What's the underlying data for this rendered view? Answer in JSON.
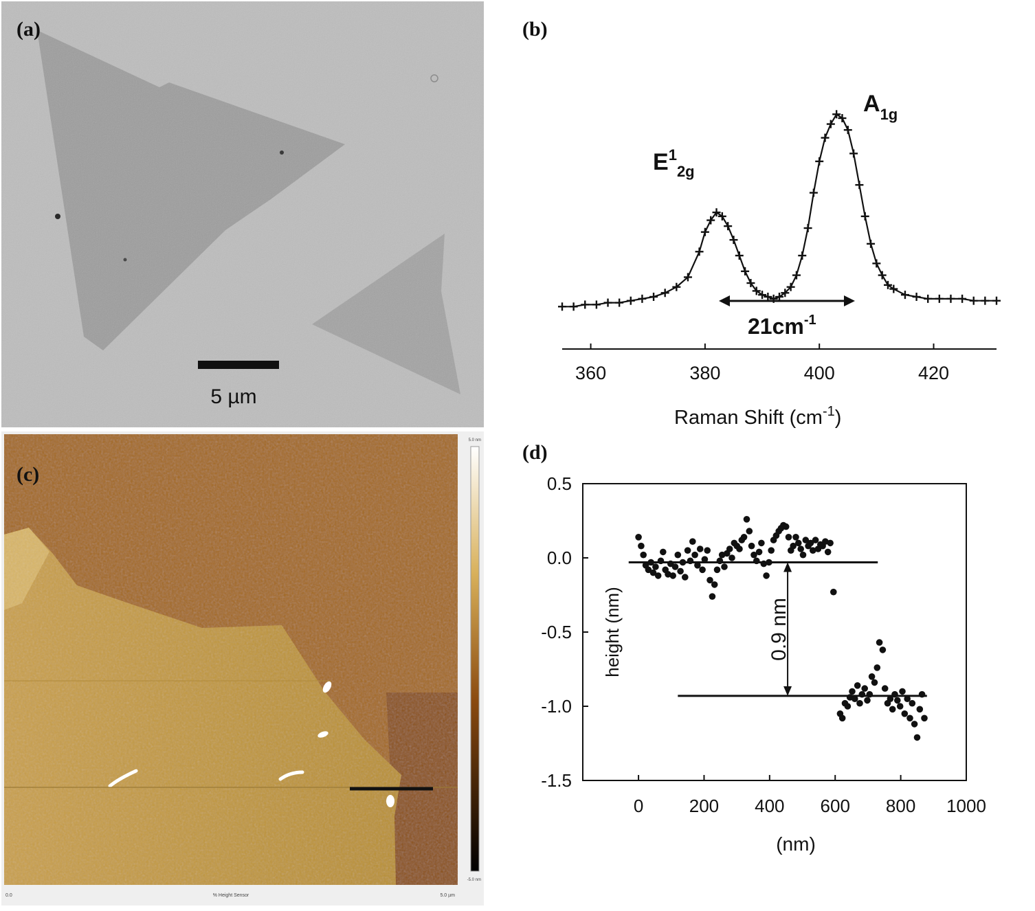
{
  "panels": {
    "a": {
      "label": "(a)",
      "scale_bar_text": "5 µm"
    },
    "b": {
      "label": "(b)",
      "peak1_main": "E",
      "peak1_sup": "1",
      "peak1_sub": "2g",
      "peak2_main": "A",
      "peak2_sub": "1g",
      "separation_main": "21cm",
      "separation_sup": "-1",
      "xlabel_main": "Raman Shift (cm",
      "xlabel_sup": "-1",
      "xlabel_end": ")"
    },
    "c": {
      "label": "(c)",
      "colorbar_top": "5.0 nm",
      "colorbar_bottom": "-5.0 nm",
      "footer_left": "0.0",
      "footer_mid": "% Height Sensor",
      "footer_right": "5.0 µm"
    },
    "d": {
      "label": "(d)",
      "step_label": "0.9 nm"
    }
  },
  "chart_data": [
    {
      "panel": "b",
      "type": "line",
      "xlabel": "Raman Shift (cm-1)",
      "ylabel": "",
      "xlim": [
        355,
        431
      ],
      "xticks": [
        360,
        380,
        400,
        420
      ],
      "ylim": [
        0,
        1.05
      ],
      "marker": "+",
      "annotations": [
        "E12g",
        "A1g",
        "21cm-1"
      ],
      "x": [
        355,
        357,
        359,
        361,
        363,
        365,
        367,
        369,
        371,
        373,
        375,
        377,
        379,
        380,
        381,
        382,
        383,
        384,
        385,
        386,
        387,
        388,
        389,
        390,
        391,
        392,
        393,
        394,
        395,
        396,
        397,
        398,
        399,
        400,
        401,
        402,
        403,
        404,
        405,
        406,
        407,
        408,
        409,
        410,
        411,
        412,
        413,
        415,
        417,
        419,
        421,
        423,
        425,
        427,
        429,
        431
      ],
      "y": [
        0.02,
        0.02,
        0.03,
        0.03,
        0.04,
        0.04,
        0.05,
        0.06,
        0.07,
        0.09,
        0.12,
        0.17,
        0.3,
        0.4,
        0.46,
        0.5,
        0.48,
        0.43,
        0.36,
        0.28,
        0.2,
        0.14,
        0.1,
        0.08,
        0.07,
        0.06,
        0.07,
        0.09,
        0.12,
        0.18,
        0.28,
        0.42,
        0.6,
        0.76,
        0.88,
        0.95,
        1.0,
        0.98,
        0.92,
        0.8,
        0.64,
        0.48,
        0.34,
        0.24,
        0.18,
        0.13,
        0.11,
        0.08,
        0.07,
        0.06,
        0.06,
        0.06,
        0.06,
        0.05,
        0.05,
        0.05
      ]
    },
    {
      "panel": "d",
      "type": "scatter",
      "xlabel": "(nm)",
      "ylabel": "height (nm)",
      "xlim": [
        -170,
        1000
      ],
      "ylim": [
        -1.5,
        0.5
      ],
      "xticks": [
        0,
        200,
        400,
        600,
        800,
        1000
      ],
      "yticks": [
        0.5,
        0.0,
        -0.5,
        -1.0,
        -1.5
      ],
      "ytick_labels": [
        "0.5",
        "0.0",
        "-0.5",
        "-1.0",
        "-1.5"
      ],
      "reference_lines": [
        {
          "x": [
            -30,
            730
          ],
          "y": -0.03
        },
        {
          "x": [
            120,
            880
          ],
          "y": -0.93
        }
      ],
      "step_annotation": {
        "x": 455,
        "y_from": -0.03,
        "y_to": -0.93,
        "text": "0.9 nm"
      },
      "x": [
        0,
        8,
        15,
        22,
        30,
        38,
        45,
        52,
        60,
        68,
        75,
        82,
        90,
        98,
        105,
        112,
        120,
        128,
        135,
        142,
        150,
        158,
        165,
        172,
        180,
        188,
        195,
        202,
        210,
        218,
        225,
        232,
        240,
        248,
        255,
        262,
        270,
        278,
        285,
        292,
        300,
        308,
        315,
        322,
        330,
        338,
        345,
        352,
        360,
        368,
        375,
        382,
        390,
        398,
        405,
        412,
        420,
        428,
        435,
        442,
        450,
        458,
        465,
        472,
        480,
        488,
        495,
        502,
        510,
        518,
        525,
        532,
        540,
        548,
        555,
        562,
        570,
        578,
        585,
        595,
        615,
        622,
        630,
        638,
        645,
        652,
        660,
        668,
        675,
        682,
        690,
        698,
        705,
        712,
        720,
        728,
        735,
        745,
        752,
        760,
        768,
        775,
        782,
        790,
        798,
        805,
        812,
        820,
        828,
        835,
        842,
        850,
        858,
        865,
        872
      ],
      "y": [
        0.14,
        0.08,
        0.02,
        -0.05,
        -0.08,
        -0.03,
        -0.1,
        -0.06,
        -0.12,
        -0.02,
        0.04,
        -0.08,
        -0.11,
        -0.04,
        -0.12,
        -0.06,
        0.02,
        -0.09,
        -0.03,
        -0.13,
        0.05,
        -0.02,
        0.11,
        0.02,
        -0.05,
        0.06,
        -0.08,
        -0.01,
        0.05,
        -0.15,
        -0.26,
        -0.18,
        -0.08,
        -0.02,
        0.02,
        -0.06,
        0.03,
        0.06,
        0.0,
        0.1,
        0.08,
        0.06,
        0.12,
        0.14,
        0.26,
        0.18,
        0.08,
        0.02,
        -0.02,
        0.04,
        0.1,
        -0.04,
        -0.12,
        -0.03,
        0.05,
        0.12,
        0.15,
        0.18,
        0.2,
        0.22,
        0.21,
        0.14,
        0.05,
        0.08,
        0.14,
        0.1,
        0.06,
        0.02,
        0.12,
        0.08,
        0.1,
        0.05,
        0.12,
        0.06,
        0.09,
        0.08,
        0.11,
        0.04,
        0.1,
        -0.23,
        -1.05,
        -1.08,
        -0.98,
        -1.0,
        -0.94,
        -0.9,
        -0.95,
        -0.86,
        -0.98,
        -0.92,
        -0.88,
        -0.96,
        -0.92,
        -0.8,
        -0.84,
        -0.74,
        -0.57,
        -0.62,
        -0.88,
        -0.98,
        -0.95,
        -1.02,
        -0.92,
        -0.96,
        -1.0,
        -0.9,
        -1.05,
        -0.95,
        -1.08,
        -0.98,
        -1.12,
        -1.21,
        -1.02,
        -0.92,
        -1.08
      ]
    }
  ]
}
